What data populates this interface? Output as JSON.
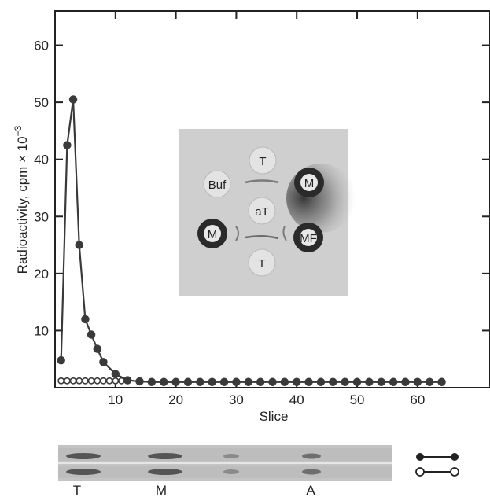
{
  "chart_data": {
    "type": "line",
    "title": "",
    "xlabel": "Slice",
    "ylabel": "Radioactivity, cpm × 10",
    "ylabel_superscript": "−3",
    "xlim": [
      0,
      72
    ],
    "ylim": [
      0,
      66
    ],
    "x_ticks": [
      10,
      20,
      30,
      40,
      50,
      60
    ],
    "y_ticks": [
      10,
      20,
      30,
      40,
      50,
      60
    ],
    "grid": false,
    "series": [
      {
        "marker": "filled-circle",
        "color": "#3a3a3a",
        "x": [
          1,
          2,
          3,
          4,
          5,
          6,
          7,
          8,
          10,
          12,
          14,
          16,
          18,
          20,
          22,
          24,
          26,
          28,
          30,
          32,
          34,
          36,
          38,
          40,
          42,
          44,
          46,
          48,
          50,
          52,
          54,
          56,
          58,
          60,
          62,
          64
        ],
        "y": [
          4.8,
          42.5,
          50.5,
          25,
          12,
          9.3,
          6.8,
          4.5,
          2.4,
          1.3,
          1.1,
          1.0,
          1.0,
          1.0,
          1.0,
          1.0,
          1.0,
          1.0,
          1.0,
          1.0,
          1.0,
          1.0,
          1.0,
          1.0,
          1.0,
          1.0,
          1.0,
          1.0,
          1.0,
          1.0,
          1.0,
          1.0,
          1.0,
          1.0,
          1.0,
          1.0
        ]
      },
      {
        "marker": "open-circle",
        "color": "#3a3a3a",
        "x": [
          1,
          2,
          3,
          4,
          5,
          6,
          7,
          8,
          9,
          10,
          11
        ],
        "y": [
          1.2,
          1.2,
          1.2,
          1.2,
          1.2,
          1.2,
          1.2,
          1.2,
          1.2,
          1.2,
          1.2
        ]
      }
    ]
  },
  "inset": {
    "wells": [
      {
        "label": "T",
        "style": "light"
      },
      {
        "label": "Buf",
        "style": "light"
      },
      {
        "label": "M",
        "style": "dark"
      },
      {
        "label": "aT",
        "style": "light"
      },
      {
        "label": "M",
        "style": "dark"
      },
      {
        "label": "MF",
        "style": "dark"
      },
      {
        "label": "T",
        "style": "light"
      }
    ]
  },
  "gel": {
    "lane_labels": [
      "T",
      "M",
      "A"
    ]
  }
}
